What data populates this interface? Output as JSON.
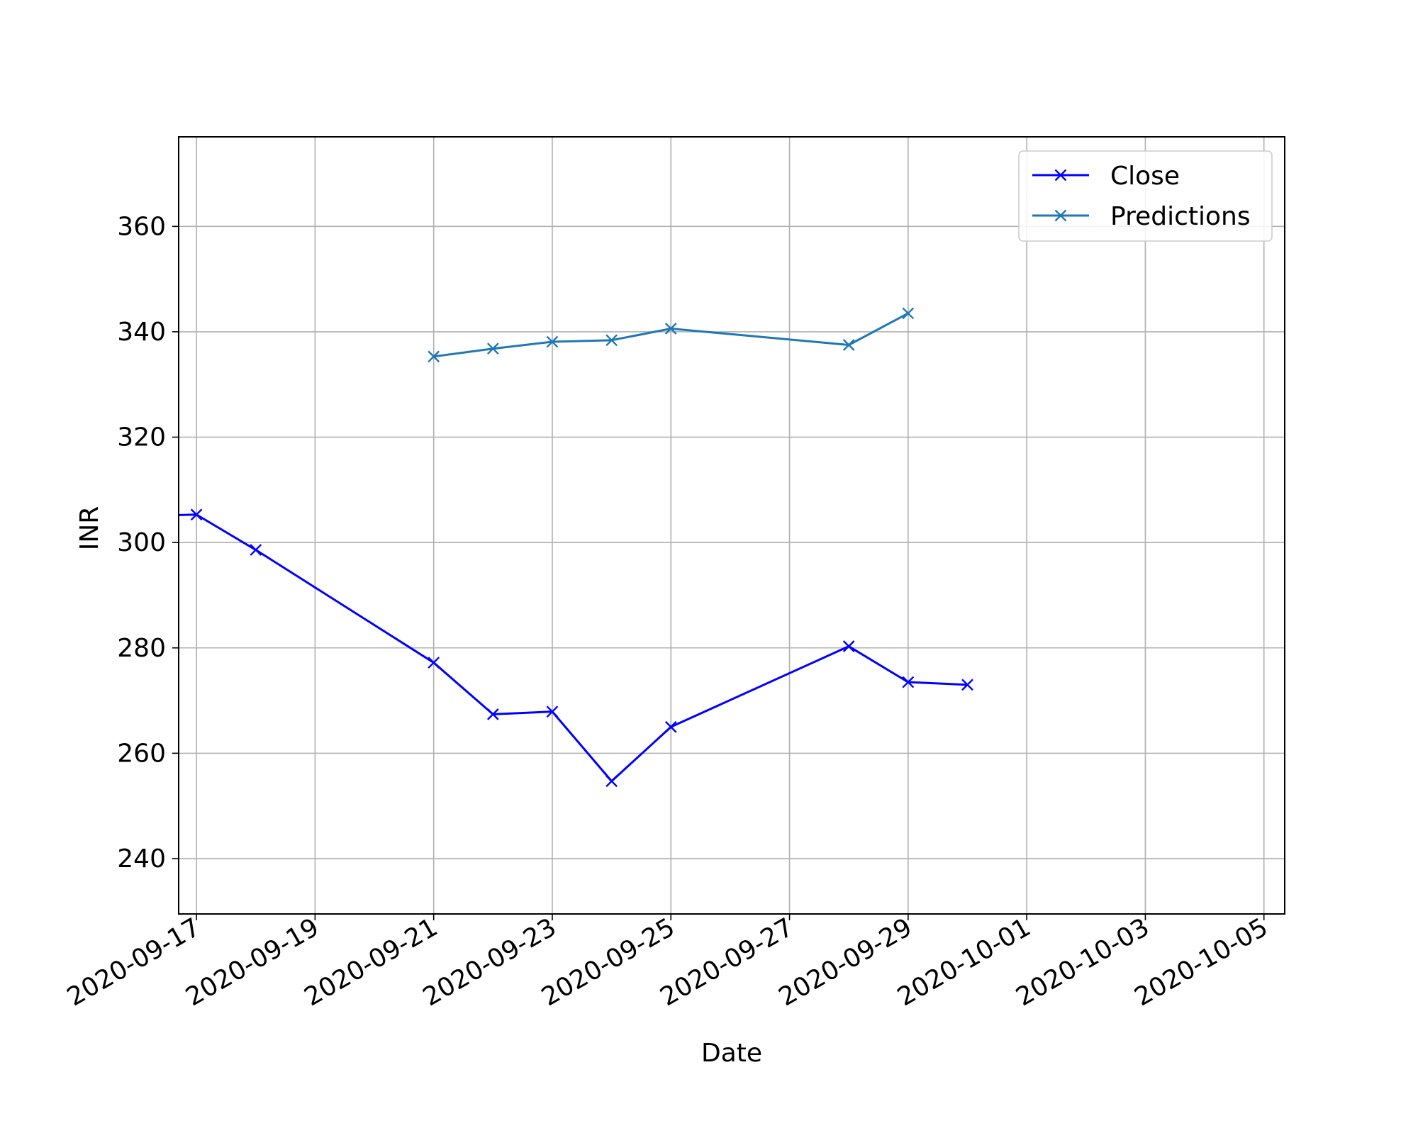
{
  "chart_data": {
    "type": "line",
    "title": "",
    "xlabel": "Date",
    "ylabel": "INR",
    "x_axis_type": "date",
    "xlim": [
      "2020-09-16.7",
      "2020-10-05.35"
    ],
    "ylim": [
      229.5,
      377
    ],
    "grid": true,
    "legend_position": "top-right",
    "x_ticks": [
      "2020-09-17",
      "2020-09-19",
      "2020-09-21",
      "2020-09-23",
      "2020-09-25",
      "2020-09-27",
      "2020-09-29",
      "2020-10-01",
      "2020-10-03",
      "2020-10-05"
    ],
    "y_ticks": [
      240,
      260,
      280,
      300,
      320,
      340,
      360
    ],
    "series": [
      {
        "name": "Close",
        "color": "#0000ff",
        "marker": "x",
        "x": [
          "2020-09-16",
          "2020-09-17",
          "2020-09-18",
          "2020-09-21",
          "2020-09-22",
          "2020-09-23",
          "2020-09-24",
          "2020-09-25",
          "2020-09-28",
          "2020-09-29",
          "2020-09-30"
        ],
        "values": [
          305.0,
          305.3,
          298.6,
          277.2,
          267.4,
          267.9,
          254.7,
          265.0,
          280.3,
          273.5,
          273.0
        ]
      },
      {
        "name": "Predictions",
        "color": "#1f77b4",
        "marker": "x",
        "x": [
          "2020-09-21",
          "2020-09-22",
          "2020-09-23",
          "2020-09-24",
          "2020-09-25",
          "2020-09-28",
          "2020-09-29"
        ],
        "values": [
          335.3,
          336.8,
          338.1,
          338.4,
          340.6,
          337.5,
          343.5
        ]
      }
    ]
  }
}
